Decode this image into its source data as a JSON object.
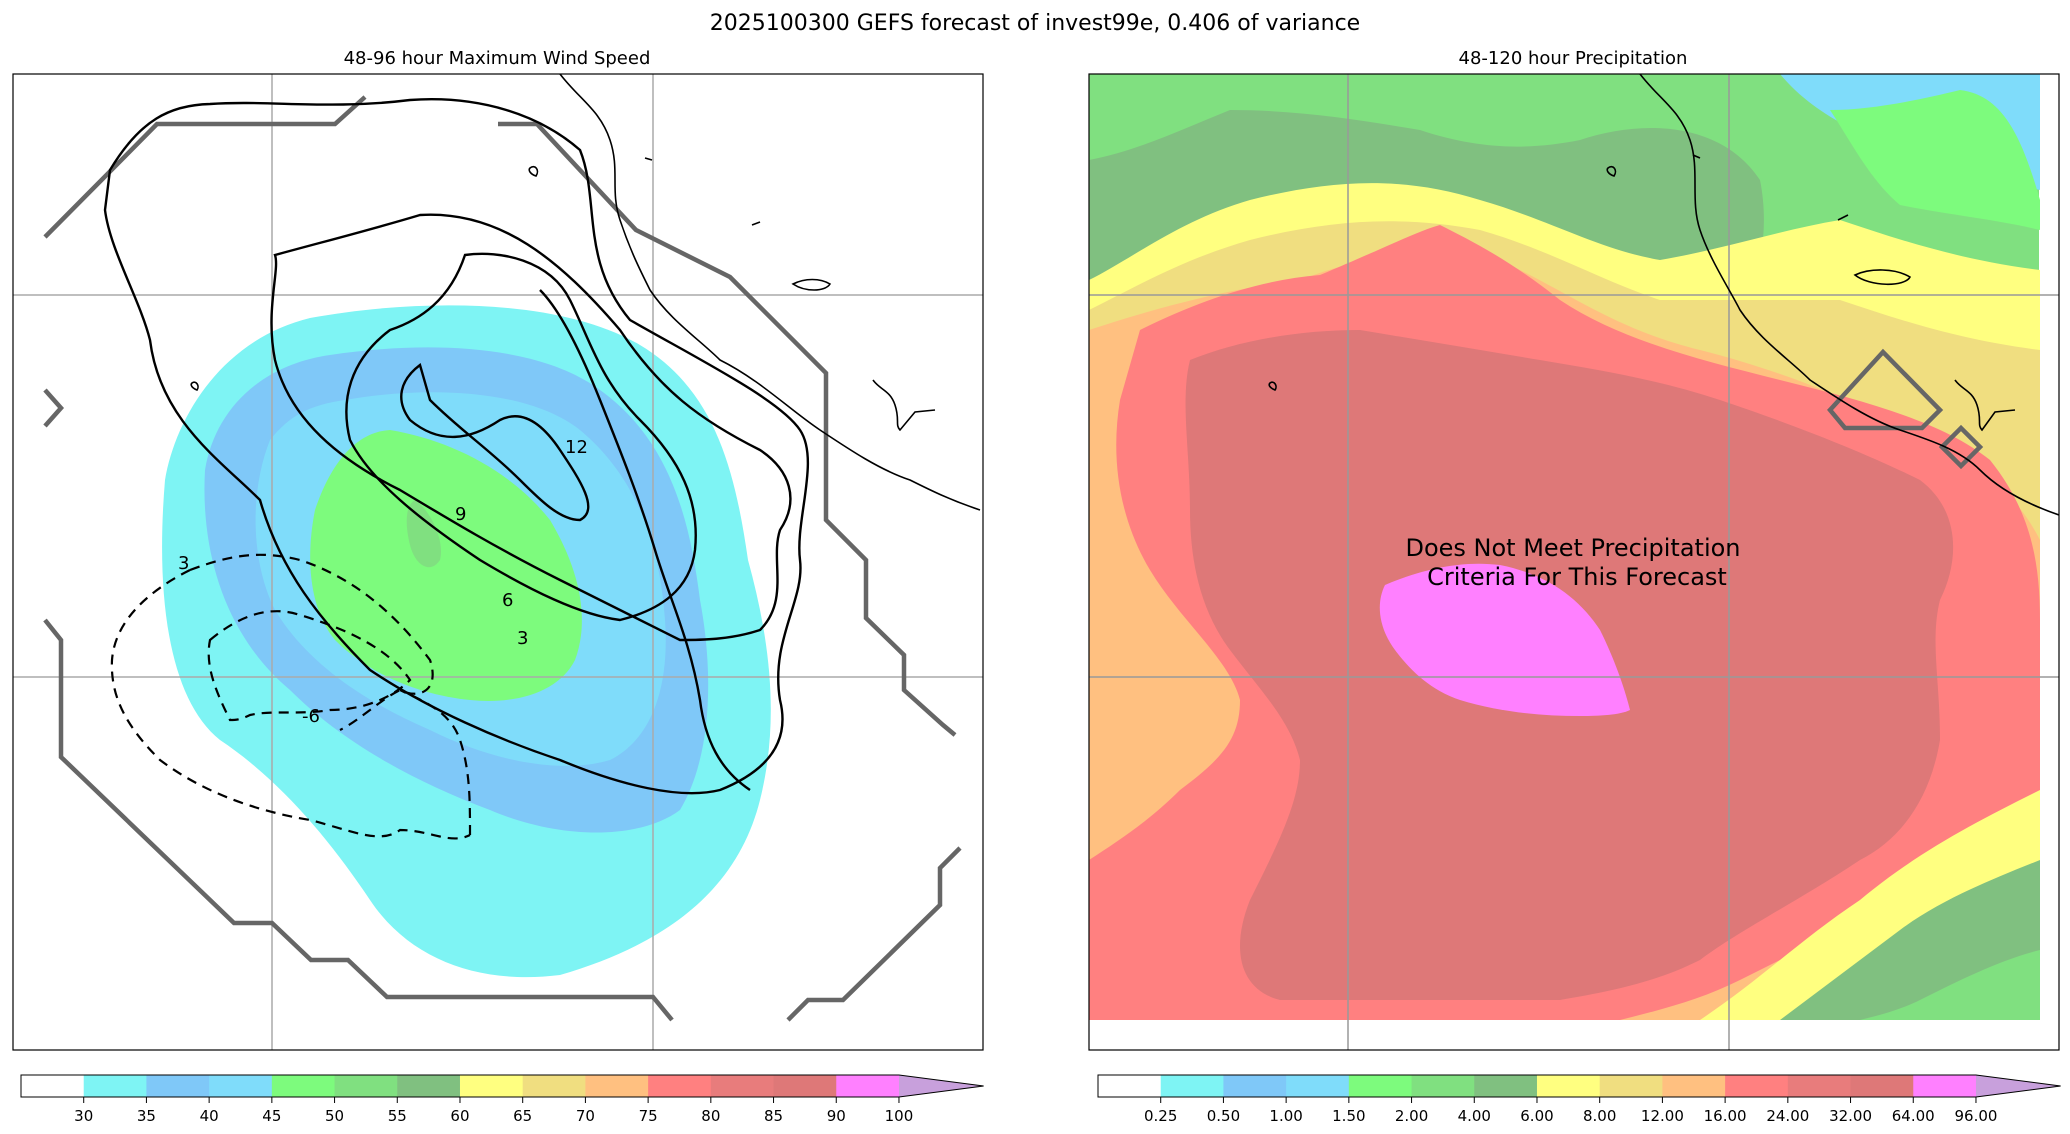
{
  "title": "2025100300 GEFS forecast of invest99e, 0.406 of variance",
  "left_panel": {
    "title": "48-96 hour Maximum Wind Speed",
    "contour_labels": [
      "12",
      "9",
      "6",
      "3",
      "3",
      "-6"
    ],
    "colorbar": {
      "ticks": [
        "30",
        "35",
        "40",
        "45",
        "50",
        "55",
        "60",
        "65",
        "70",
        "75",
        "80",
        "85",
        "90",
        "100"
      ],
      "colors": [
        "#ffffff",
        "#7ef4f4",
        "#7fc8f8",
        "#7fdcfa",
        "#7dfb7d",
        "#80e080",
        "#80c080",
        "#ffff80",
        "#f0de80",
        "#ffc080",
        "#ff8080",
        "#e87c7c",
        "#de7878",
        "#ff80ff",
        "#c8a0dc"
      ]
    }
  },
  "right_panel": {
    "title": "48-120 hour Precipitation",
    "note_line1": "Does Not Meet Precipitation",
    "note_line2": "Criteria For This Forecast",
    "colorbar": {
      "ticks": [
        "0.25",
        "0.50",
        "1.00",
        "1.50",
        "2.00",
        "4.00",
        "6.00",
        "8.00",
        "12.00",
        "16.00",
        "24.00",
        "32.00",
        "64.00",
        "96.00"
      ],
      "colors": [
        "#ffffff",
        "#7ef4f4",
        "#7fc8f8",
        "#7fdcfa",
        "#7dfb7d",
        "#80e080",
        "#80c080",
        "#ffff80",
        "#f0de80",
        "#ffc080",
        "#ff8080",
        "#e87c7c",
        "#de7878",
        "#ff80ff",
        "#c8a0dc"
      ]
    }
  }
}
